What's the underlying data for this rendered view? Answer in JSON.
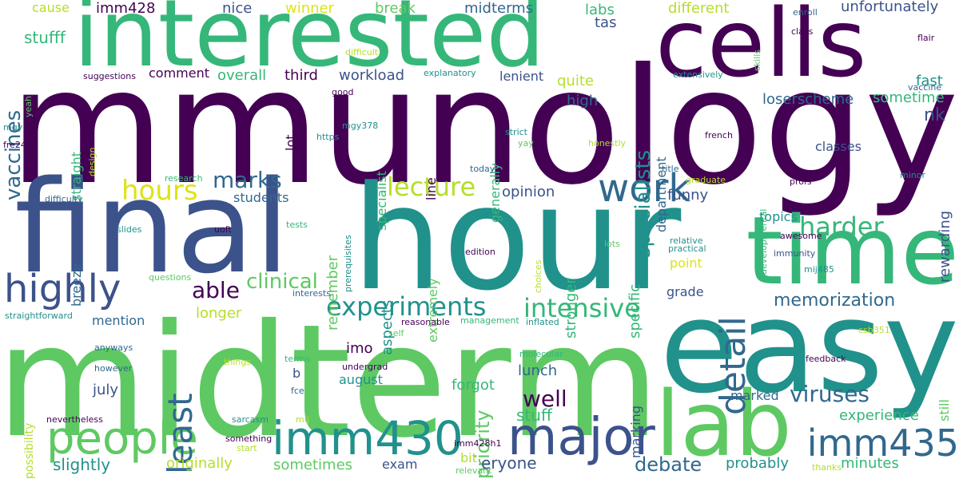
{
  "palette": {
    "dark_purple": "#440154",
    "indigo": "#3b528b",
    "blue": "#31688e",
    "teal": "#21918c",
    "green": "#35b779",
    "light_green": "#5ec962",
    "lime": "#b5de2b",
    "yellow": "#dde318"
  },
  "words": [
    {
      "text": "immunology",
      "color": "#440154"
    },
    {
      "text": "interested",
      "color": "#35b779"
    },
    {
      "text": "cells",
      "color": "#440154"
    },
    {
      "text": "final",
      "color": "#3b528b"
    },
    {
      "text": "hour",
      "color": "#21918c"
    },
    {
      "text": "time",
      "color": "#35b779"
    },
    {
      "text": "midterm",
      "color": "#5ec962"
    },
    {
      "text": "easy",
      "color": "#21918c"
    },
    {
      "text": "lab",
      "color": "#5ec962"
    },
    {
      "text": "major",
      "color": "#3b528b"
    },
    {
      "text": "imm430",
      "color": "#21918c"
    },
    {
      "text": "imm435",
      "color": "#31688e"
    },
    {
      "text": "people",
      "color": "#5ec962"
    },
    {
      "text": "highly",
      "color": "#3b528b"
    },
    {
      "text": "work",
      "color": "#31688e"
    },
    {
      "text": "hours",
      "color": "#dde318"
    },
    {
      "text": "detail",
      "color": "#31688e"
    },
    {
      "text": "least",
      "color": "#31688e"
    },
    {
      "text": "experiments",
      "color": "#21918c"
    },
    {
      "text": "intensive",
      "color": "#35b779"
    },
    {
      "text": "lecture",
      "color": "#b5de2b"
    },
    {
      "text": "harder",
      "color": "#35b779"
    },
    {
      "text": "clinical",
      "color": "#5ec962"
    },
    {
      "text": "memorization",
      "color": "#31688e"
    },
    {
      "text": "viruses",
      "color": "#31688e"
    },
    {
      "text": "specialists",
      "color": "#21918c"
    },
    {
      "text": "vaccines",
      "color": "#31688e"
    },
    {
      "text": "marks",
      "color": "#31688e"
    },
    {
      "text": "able",
      "color": "#440154"
    },
    {
      "text": "well",
      "color": "#440154"
    },
    {
      "text": "debate",
      "color": "#31688e"
    },
    {
      "text": "priority",
      "color": "#5ec962"
    },
    {
      "text": "stuff",
      "color": "#35b779"
    },
    {
      "text": "stufff",
      "color": "#35b779"
    },
    {
      "text": "opinion",
      "color": "#3b528b"
    },
    {
      "text": "nk",
      "color": "#3b528b"
    },
    {
      "text": "loserscheme",
      "color": "#31688e"
    },
    {
      "text": "sometime",
      "color": "#35b779"
    },
    {
      "text": "fast",
      "color": "#21918c"
    },
    {
      "text": "unfortunately",
      "color": "#3b528b"
    },
    {
      "text": "quite",
      "color": "#b5de2b"
    },
    {
      "text": "high",
      "color": "#31688e"
    },
    {
      "text": "lenient",
      "color": "#3b528b"
    },
    {
      "text": "workload",
      "color": "#3b528b"
    },
    {
      "text": "third",
      "color": "#440154"
    },
    {
      "text": "overall",
      "color": "#35b779"
    },
    {
      "text": "comment",
      "color": "#440154"
    },
    {
      "text": "imm428",
      "color": "#440154"
    },
    {
      "text": "nice",
      "color": "#3b528b"
    },
    {
      "text": "winner",
      "color": "#dde318"
    },
    {
      "text": "break",
      "color": "#5ec962"
    },
    {
      "text": "midterms",
      "color": "#31688e"
    },
    {
      "text": "labs",
      "color": "#35b779"
    },
    {
      "text": "tas",
      "color": "#3b528b"
    },
    {
      "text": "different",
      "color": "#b5de2b"
    },
    {
      "text": "cause",
      "color": "#b5de2b"
    },
    {
      "text": "classes",
      "color": "#3b528b"
    },
    {
      "text": "rewarding",
      "color": "#3b528b"
    },
    {
      "text": "topics",
      "color": "#21918c"
    },
    {
      "text": "funny",
      "color": "#3b528b"
    },
    {
      "text": "point",
      "color": "#dde318"
    },
    {
      "text": "grade",
      "color": "#3b528b"
    },
    {
      "text": "longer",
      "color": "#b5de2b"
    },
    {
      "text": "mention",
      "color": "#31688e"
    },
    {
      "text": "imo",
      "color": "#440154"
    },
    {
      "text": "lunch",
      "color": "#31688e"
    },
    {
      "text": "forgot",
      "color": "#35b779"
    },
    {
      "text": "august",
      "color": "#21918c"
    },
    {
      "text": "july",
      "color": "#3b528b"
    },
    {
      "text": "slightly",
      "color": "#21918c"
    },
    {
      "text": "originally",
      "color": "#b5de2b"
    },
    {
      "text": "sometimes",
      "color": "#5ec962"
    },
    {
      "text": "exam",
      "color": "#3b528b"
    },
    {
      "text": "bit",
      "color": "#b5de2b"
    },
    {
      "text": "eryone",
      "color": "#3b528b"
    },
    {
      "text": "probably",
      "color": "#21918c"
    },
    {
      "text": "minutes",
      "color": "#35b779"
    },
    {
      "text": "experience",
      "color": "#35b779"
    },
    {
      "text": "marked",
      "color": "#31688e"
    },
    {
      "text": "students",
      "color": "#31688e"
    },
    {
      "text": "remember",
      "color": "#5ec962"
    },
    {
      "text": "breeze",
      "color": "#31688e"
    },
    {
      "text": "straight",
      "color": "#35b779"
    },
    {
      "text": "specialist",
      "color": "#35b779"
    },
    {
      "text": "generally",
      "color": "#35b779"
    },
    {
      "text": "department",
      "color": "#31688e"
    },
    {
      "text": "specific",
      "color": "#35b779"
    },
    {
      "text": "stronger",
      "color": "#35b779"
    },
    {
      "text": "extremely",
      "color": "#5ec962"
    },
    {
      "text": "aspects",
      "color": "#21918c"
    },
    {
      "text": "lot",
      "color": "#440154"
    },
    {
      "text": "line",
      "color": "#440154"
    },
    {
      "text": "b",
      "color": "#3b528b"
    },
    {
      "text": "marking",
      "color": "#3b528b"
    },
    {
      "text": "possibility",
      "color": "#b5de2b"
    },
    {
      "text": "still",
      "color": "#5ec962"
    },
    {
      "text": "enroll",
      "color": "#31688e"
    },
    {
      "text": "class",
      "color": "#440154"
    },
    {
      "text": "flair",
      "color": "#440154"
    },
    {
      "text": "skills",
      "color": "#5ec962"
    },
    {
      "text": "difficult",
      "color": "#b5de2b"
    },
    {
      "text": "explanatory",
      "color": "#21918c"
    },
    {
      "text": "suggestions",
      "color": "#440154"
    },
    {
      "text": "extensively",
      "color": "#21918c"
    },
    {
      "text": "vaccine",
      "color": "#31688e"
    },
    {
      "text": "yeah",
      "color": "#5ec962"
    },
    {
      "text": "good",
      "color": "#440154"
    },
    {
      "text": "mgy",
      "color": "#21918c"
    },
    {
      "text": "mgy378",
      "color": "#21918c"
    },
    {
      "text": "https",
      "color": "#21918c"
    },
    {
      "text": "strict",
      "color": "#21918c"
    },
    {
      "text": "yay",
      "color": "#5ec962"
    },
    {
      "text": "honestly",
      "color": "#b5de2b"
    },
    {
      "text": "french",
      "color": "#440154"
    },
    {
      "text": "fre240",
      "color": "#440154"
    },
    {
      "text": "design",
      "color": "#b5de2b"
    },
    {
      "text": "research",
      "color": "#35b779"
    },
    {
      "text": "today",
      "color": "#31688e"
    },
    {
      "text": "title",
      "color": "#31688e"
    },
    {
      "text": "minor",
      "color": "#21918c"
    },
    {
      "text": "graduate",
      "color": "#b5de2b"
    },
    {
      "text": "developmental",
      "color": "#35b779"
    },
    {
      "text": "profs",
      "color": "#440154"
    },
    {
      "text": "difficulty",
      "color": "#31688e"
    },
    {
      "text": "prerequisites",
      "color": "#21918c"
    },
    {
      "text": "slides",
      "color": "#21918c"
    },
    {
      "text": "uoft",
      "color": "#440154"
    },
    {
      "text": "tests",
      "color": "#35b779"
    },
    {
      "text": "awesome",
      "color": "#440154"
    },
    {
      "text": "relative",
      "color": "#21918c"
    },
    {
      "text": "practical",
      "color": "#21918c"
    },
    {
      "text": "lots",
      "color": "#5ec962"
    },
    {
      "text": "choices",
      "color": "#b5de2b"
    },
    {
      "text": "edition",
      "color": "#440154"
    },
    {
      "text": "immunity",
      "color": "#3b528b"
    },
    {
      "text": "mij485",
      "color": "#21918c"
    },
    {
      "text": "questions",
      "color": "#5ec962"
    },
    {
      "text": "interests",
      "color": "#31688e"
    },
    {
      "text": "straightforward",
      "color": "#21918c"
    },
    {
      "text": "reasonable",
      "color": "#440154"
    },
    {
      "text": "management",
      "color": "#35b779"
    },
    {
      "text": "inflated",
      "color": "#21918c"
    },
    {
      "text": "csb351",
      "color": "#b5de2b"
    },
    {
      "text": "self",
      "color": "#5ec962"
    },
    {
      "text": "anyways",
      "color": "#31688e"
    },
    {
      "text": "molecular",
      "color": "#35b779"
    },
    {
      "text": "feedback",
      "color": "#440154"
    },
    {
      "text": "however",
      "color": "#31688e"
    },
    {
      "text": "things",
      "color": "#b5de2b"
    },
    {
      "text": "terms",
      "color": "#35b779"
    },
    {
      "text": "undergrad",
      "color": "#440154"
    },
    {
      "text": "fce",
      "color": "#31688e"
    },
    {
      "text": "nevertheless",
      "color": "#440154"
    },
    {
      "text": "sarcasm",
      "color": "#21918c"
    },
    {
      "text": "mij",
      "color": "#b5de2b"
    },
    {
      "text": "something",
      "color": "#440154"
    },
    {
      "text": "start",
      "color": "#b5de2b"
    },
    {
      "text": "imm428h1",
      "color": "#440154"
    },
    {
      "text": "relevant",
      "color": "#5ec962"
    },
    {
      "text": "thanks",
      "color": "#b5de2b"
    }
  ]
}
